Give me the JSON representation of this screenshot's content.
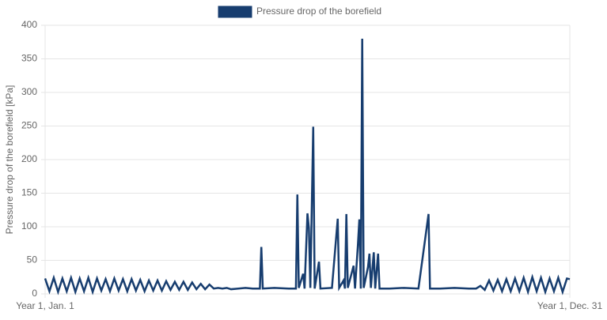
{
  "chart_data": {
    "type": "line",
    "legend_label": "Pressure drop of the borefield",
    "ylabel": "Pressure drop of the borefield [kPa]",
    "series": [
      {
        "name": "Pressure drop of the borefield",
        "color": "#173d6f",
        "x": [
          1,
          4,
          7,
          10,
          13,
          16,
          19,
          22,
          25,
          28,
          31,
          34,
          37,
          40,
          43,
          46,
          49,
          52,
          55,
          58,
          61,
          64,
          67,
          70,
          73,
          76,
          79,
          82,
          85,
          88,
          91,
          94,
          97,
          100,
          103,
          106,
          109,
          112,
          115,
          118,
          121,
          124,
          127,
          130,
          135,
          140,
          145,
          150,
          151,
          152,
          160,
          170,
          175,
          176,
          177,
          180,
          181,
          183,
          184,
          185,
          187,
          188,
          191,
          192,
          200,
          204,
          205,
          208,
          209,
          210,
          211,
          215,
          216,
          218,
          219,
          220,
          221,
          222,
          225,
          226,
          227,
          229,
          230,
          232,
          233,
          240,
          250,
          260,
          267,
          268,
          275,
          285,
          295,
          300,
          303,
          306,
          309,
          312,
          315,
          318,
          321,
          324,
          327,
          330,
          333,
          336,
          339,
          342,
          345,
          348,
          351,
          354,
          357,
          360,
          363,
          365
        ],
        "values": [
          23,
          4,
          24,
          3,
          23,
          4,
          24,
          3,
          23,
          4,
          24,
          3,
          23,
          5,
          22,
          4,
          23,
          5,
          22,
          4,
          22,
          5,
          21,
          4,
          20,
          5,
          20,
          5,
          19,
          6,
          18,
          6,
          18,
          6,
          17,
          7,
          15,
          7,
          14,
          8,
          9,
          8,
          9,
          7,
          8,
          9,
          8,
          8,
          70,
          8,
          9,
          8,
          8,
          148,
          9,
          30,
          8,
          120,
          98,
          9,
          249,
          8,
          48,
          8,
          9,
          112,
          9,
          20,
          8,
          119,
          9,
          42,
          8,
          73,
          111,
          8,
          380,
          9,
          40,
          60,
          9,
          62,
          8,
          60,
          8,
          8,
          9,
          8,
          119,
          8,
          8,
          9,
          8,
          8,
          12,
          6,
          20,
          5,
          21,
          4,
          22,
          4,
          23,
          4,
          24,
          3,
          25,
          4,
          24,
          3,
          23,
          4,
          24,
          3,
          23,
          22
        ]
      }
    ],
    "xlim": [
      1,
      365
    ],
    "xticks": [
      {
        "value": 1,
        "label": "Year 1, Jan. 1"
      },
      {
        "value": 365,
        "label": "Year 1, Dec. 31"
      }
    ],
    "ylim": [
      0,
      400
    ],
    "yticks": [
      0,
      50,
      100,
      150,
      200,
      250,
      300,
      350,
      400
    ],
    "grid": true
  }
}
